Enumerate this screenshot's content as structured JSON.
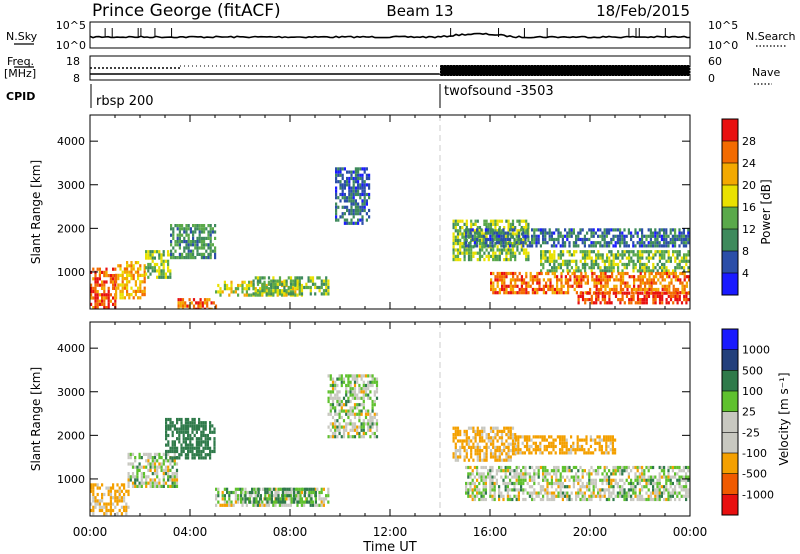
{
  "header": {
    "station": "Prince George (fitACF)",
    "beam": "Beam 13",
    "date": "18/Feb/2015"
  },
  "top_panels": {
    "nsky_label": "N.Sky",
    "nsky_ticks": [
      "10^5",
      "10^0"
    ],
    "nsearch_label": "N.Search",
    "nsearch_ticks": [
      "10^5",
      "10^0"
    ],
    "freq_label": "Freq.",
    "freq_unit": "[MHz]",
    "freq_ticks": [
      "18",
      "8"
    ],
    "nave_label": "Nave",
    "nave_ticks": [
      "60",
      "0"
    ],
    "cpid_label": "CPID",
    "cpid_segments": [
      {
        "name": "rbsp 200",
        "start_hour": 0
      },
      {
        "name": "twofsound -3503",
        "start_hour": 14
      }
    ]
  },
  "colors": {
    "power_scale": [
      "#1a1aff",
      "#2b4ea8",
      "#3e8a5c",
      "#5aa94a",
      "#e9e100",
      "#f3a900",
      "#f36b00",
      "#e81010"
    ],
    "velocity_scale": [
      "#e81010",
      "#f05a00",
      "#f4a000",
      "#c8c8c0",
      "#c8c8c0",
      "#5fc12e",
      "#2f7a4a",
      "#23407c",
      "#1a1aff"
    ],
    "ground_scatter": "#c8c8c0"
  },
  "chart_data": [
    {
      "type": "heatmap",
      "name": "power",
      "xlabel": "",
      "ylabel": "Slant Range [km]",
      "xlim": [
        0,
        24
      ],
      "ylim": [
        150,
        4600
      ],
      "yticks": [
        "1000",
        "2000",
        "3000",
        "4000"
      ],
      "colorbar_label": "Power [dB]",
      "colorbar_ticks": [
        "4",
        "8",
        "12",
        "16",
        "20",
        "24",
        "28"
      ],
      "colorbar_range": [
        0,
        32
      ],
      "regions": [
        {
          "h0": 0.0,
          "h1": 1.0,
          "r0": 150,
          "r1": 1100,
          "v": 27
        },
        {
          "h0": 1.0,
          "h1": 2.2,
          "r0": 400,
          "r1": 1250,
          "v": 21
        },
        {
          "h0": 2.2,
          "h1": 3.2,
          "r0": 900,
          "r1": 1500,
          "v": 15
        },
        {
          "h0": 3.2,
          "h1": 5.0,
          "r0": 1300,
          "r1": 2100,
          "v": 11
        },
        {
          "h0": 3.5,
          "h1": 5.0,
          "r0": 150,
          "r1": 400,
          "v": 26
        },
        {
          "h0": 5.0,
          "h1": 8.5,
          "r0": 450,
          "r1": 800,
          "v": 17
        },
        {
          "h0": 6.5,
          "h1": 9.5,
          "r0": 500,
          "r1": 900,
          "v": 13
        },
        {
          "h0": 9.8,
          "h1": 11.2,
          "r0": 2100,
          "r1": 3400,
          "v": 7
        },
        {
          "h0": 14.5,
          "h1": 17.5,
          "r0": 1300,
          "r1": 2200,
          "v": 15
        },
        {
          "h0": 15.0,
          "h1": 24.0,
          "r0": 1600,
          "r1": 2000,
          "v": 8
        },
        {
          "h0": 18.0,
          "h1": 24.0,
          "r0": 1000,
          "r1": 1500,
          "v": 14
        },
        {
          "h0": 16.0,
          "h1": 24.0,
          "r0": 500,
          "r1": 1000,
          "v": 25
        },
        {
          "h0": 19.5,
          "h1": 24.0,
          "r0": 300,
          "r1": 550,
          "v": 29
        }
      ]
    },
    {
      "type": "heatmap",
      "name": "velocity",
      "xlabel": "Time UT",
      "ylabel": "Slant Range [km]",
      "xlim": [
        0,
        24
      ],
      "ylim": [
        150,
        4600
      ],
      "xticks": [
        "00:00",
        "04:00",
        "08:00",
        "12:00",
        "16:00",
        "20:00",
        "00:00"
      ],
      "yticks": [
        "1000",
        "2000",
        "3000",
        "4000"
      ],
      "colorbar_label": "Velocity [m s⁻¹]",
      "colorbar_ticks": [
        "1000",
        "500",
        "100",
        "25",
        "-25",
        "-100",
        "-500",
        "-1000"
      ],
      "colorbar_range": [
        -1200,
        1200
      ],
      "regions": [
        {
          "h0": 0.0,
          "h1": 1.5,
          "r0": 200,
          "r1": 900,
          "v": -150
        },
        {
          "h0": 1.5,
          "h1": 3.5,
          "r0": 800,
          "r1": 1600,
          "v": 0
        },
        {
          "h0": 3.0,
          "h1": 5.0,
          "r0": 1500,
          "r1": 2400,
          "v": 300
        },
        {
          "h0": 5.0,
          "h1": 9.5,
          "r0": 400,
          "r1": 800,
          "v": 0
        },
        {
          "h0": 6.0,
          "h1": 9.0,
          "r0": 500,
          "r1": 800,
          "v": 120
        },
        {
          "h0": 9.5,
          "h1": 11.5,
          "r0": 2000,
          "r1": 3400,
          "v": 0
        },
        {
          "h0": 14.5,
          "h1": 17.0,
          "r0": 1400,
          "r1": 2200,
          "v": -150
        },
        {
          "h0": 17.0,
          "h1": 21.0,
          "r0": 1600,
          "r1": 2000,
          "v": -200
        },
        {
          "h0": 15.0,
          "h1": 24.0,
          "r0": 500,
          "r1": 1300,
          "v": 0
        }
      ]
    }
  ]
}
